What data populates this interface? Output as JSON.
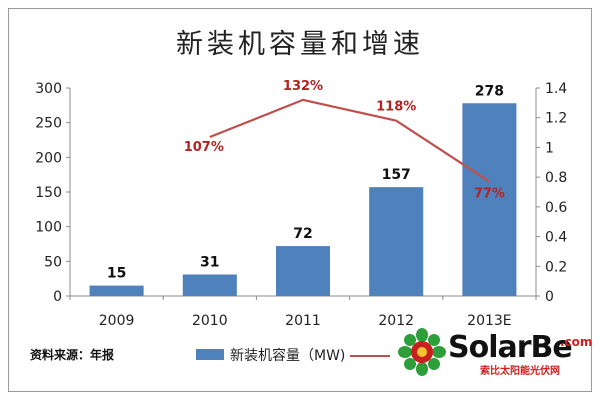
{
  "chart_data": {
    "type": "bar",
    "title": "新装机容量和增速",
    "categories": [
      "2009",
      "2010",
      "2011",
      "2012",
      "2013E"
    ],
    "series": [
      {
        "name": "新装机容量（MW)",
        "type": "bar",
        "axis": "left",
        "values": [
          15,
          31,
          72,
          157,
          278
        ],
        "labels": [
          "15",
          "31",
          "72",
          "157",
          "278"
        ]
      },
      {
        "type": "line",
        "axis": "right",
        "values": [
          null,
          1.07,
          1.32,
          1.18,
          0.77
        ],
        "labels": [
          "",
          "107%",
          "132%",
          "118%",
          "77%"
        ]
      }
    ],
    "y_left": {
      "ylim": [
        0,
        300
      ],
      "ticks": [
        "0",
        "50",
        "100",
        "150",
        "200",
        "250",
        "300"
      ]
    },
    "y_right": {
      "ylim": [
        0,
        1.4
      ],
      "ticks": [
        "0",
        "0.2",
        "0.4",
        "0.6",
        "0.8",
        "1",
        "1.2",
        "1.4"
      ]
    },
    "grid": false,
    "legend": "bottom",
    "colors": {
      "bar": "#4f81bd",
      "line": "#c0504d",
      "line_label": "#b22222"
    }
  },
  "footer": {
    "source": "资料来源：年报"
  },
  "logo": {
    "name_main": "SolarBe",
    "name_suffix": ".com",
    "subtitle": "索比太阳能光伏网"
  }
}
